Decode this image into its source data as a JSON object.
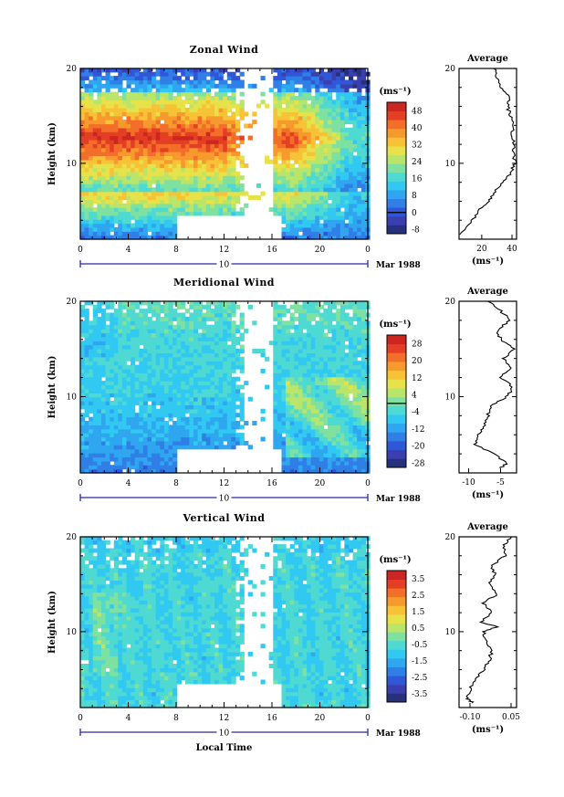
{
  "colors": {
    "colormap": [
      "#27307a",
      "#3a3fb0",
      "#3057d8",
      "#2f7fe6",
      "#2fa6ef",
      "#31c9f2",
      "#4ed9d2",
      "#7fe1a0",
      "#b9e66a",
      "#e8e24a",
      "#f8c236",
      "#f79a2d",
      "#f26e29",
      "#e43f25",
      "#cc2622"
    ],
    "frame": "#000000",
    "timeline": "#2b2b9e"
  },
  "chart_data": [
    {
      "type": "heatmap",
      "title": "Zonal Wind",
      "ylabel": "Height (km)",
      "xlabel": "",
      "xlim": [
        0,
        24
      ],
      "ylim": [
        2,
        20
      ],
      "x_ticks": [
        "0",
        "4",
        "8",
        "12",
        "16",
        "20",
        "0"
      ],
      "y_ticks": [
        "10",
        "20"
      ],
      "date_marker": "10",
      "date_label": "Mar 1988",
      "units": "(ms⁻¹)",
      "colorbar": {
        "min": -10,
        "max": 52,
        "labels": [
          "48",
          "40",
          "32",
          "24",
          "16",
          "8",
          "0",
          "-8"
        ],
        "contour_levels": [
          0
        ]
      },
      "data_gap": {
        "x_from": 8,
        "x_to": 16.5,
        "below_height": 4.2
      },
      "average": {
        "title": "Average",
        "xlabel": "(ms⁻¹)",
        "x_ticks": [
          "20",
          "40"
        ],
        "xlim": [
          5,
          43
        ],
        "y_ticks": [
          "10",
          "20"
        ],
        "height": [
          2.5,
          4,
          5,
          6,
          7,
          8,
          9,
          10,
          11,
          12,
          13,
          14,
          15,
          16,
          17,
          18,
          19,
          20
        ],
        "value": [
          6,
          14,
          18,
          24,
          29,
          34,
          39,
          42,
          41,
          41,
          40,
          41,
          39,
          37,
          38,
          33,
          30,
          28
        ]
      }
    },
    {
      "type": "heatmap",
      "title": "Meridional Wind",
      "ylabel": "Height (km)",
      "xlabel": "",
      "xlim": [
        0,
        24
      ],
      "ylim": [
        2,
        20
      ],
      "x_ticks": [
        "0",
        "4",
        "8",
        "12",
        "16",
        "20",
        "0"
      ],
      "y_ticks": [
        "10",
        "20"
      ],
      "date_marker": "10",
      "date_label": "Mar 1988",
      "units": "(ms⁻¹)",
      "colorbar": {
        "min": -30,
        "max": 32,
        "labels": [
          "28",
          "20",
          "12",
          "4",
          "-4",
          "-12",
          "-20",
          "-28"
        ],
        "contour_levels": [
          0
        ]
      },
      "data_gap": {
        "x_from": 8,
        "x_to": 16.5,
        "below_height": 4.2
      },
      "average": {
        "title": "Average",
        "xlabel": "(ms⁻¹)",
        "x_ticks": [
          "-10",
          "-5"
        ],
        "xlim": [
          -11.5,
          -2.5
        ],
        "y_ticks": [
          "10",
          "20"
        ],
        "height": [
          2.5,
          3,
          4,
          5,
          6,
          7,
          8,
          9,
          10,
          11,
          12,
          13,
          14,
          15,
          16,
          17,
          18,
          19,
          20
        ],
        "value": [
          -5,
          -4,
          -6,
          -9,
          -8.5,
          -7.5,
          -7,
          -6.5,
          -4,
          -3,
          -5,
          -3.5,
          -4.5,
          -3,
          -5,
          -5.5,
          -3.5,
          -5,
          -7
        ]
      }
    },
    {
      "type": "heatmap",
      "title": "Vertical Wind",
      "ylabel": "Height (km)",
      "xlabel": "Local Time",
      "xlim": [
        0,
        24
      ],
      "ylim": [
        2,
        20
      ],
      "x_ticks": [
        "0",
        "4",
        "8",
        "12",
        "16",
        "20",
        "0"
      ],
      "y_ticks": [
        "10",
        "20"
      ],
      "date_marker": "10",
      "date_label": "Mar 1988",
      "units": "(ms⁻¹)",
      "colorbar": {
        "min": -4,
        "max": 4,
        "labels": [
          "3.5",
          "2.5",
          "1.5",
          "0.5",
          "-0.5",
          "-1.5",
          "-2.5",
          "-3.5"
        ],
        "contour_levels": []
      },
      "data_gap": {
        "x_from": 8,
        "x_to": 16.5,
        "below_height": 4.2
      },
      "average": {
        "title": "Average",
        "xlabel": "(ms⁻¹)",
        "x_ticks": [
          "-0.10",
          "0.05"
        ],
        "xlim": [
          -0.14,
          0.07
        ],
        "y_ticks": [
          "10",
          "20"
        ],
        "height": [
          2.5,
          3,
          4,
          5,
          6,
          7,
          8,
          9,
          10,
          10.5,
          11,
          12,
          13,
          14,
          15,
          16,
          17,
          18,
          19,
          20
        ],
        "value": [
          -0.09,
          -0.11,
          -0.1,
          -0.08,
          -0.05,
          -0.03,
          -0.02,
          -0.04,
          -0.05,
          0.0,
          -0.06,
          -0.02,
          -0.05,
          0.0,
          -0.03,
          -0.01,
          -0.02,
          0.03,
          0.02,
          0.05
        ]
      }
    }
  ]
}
